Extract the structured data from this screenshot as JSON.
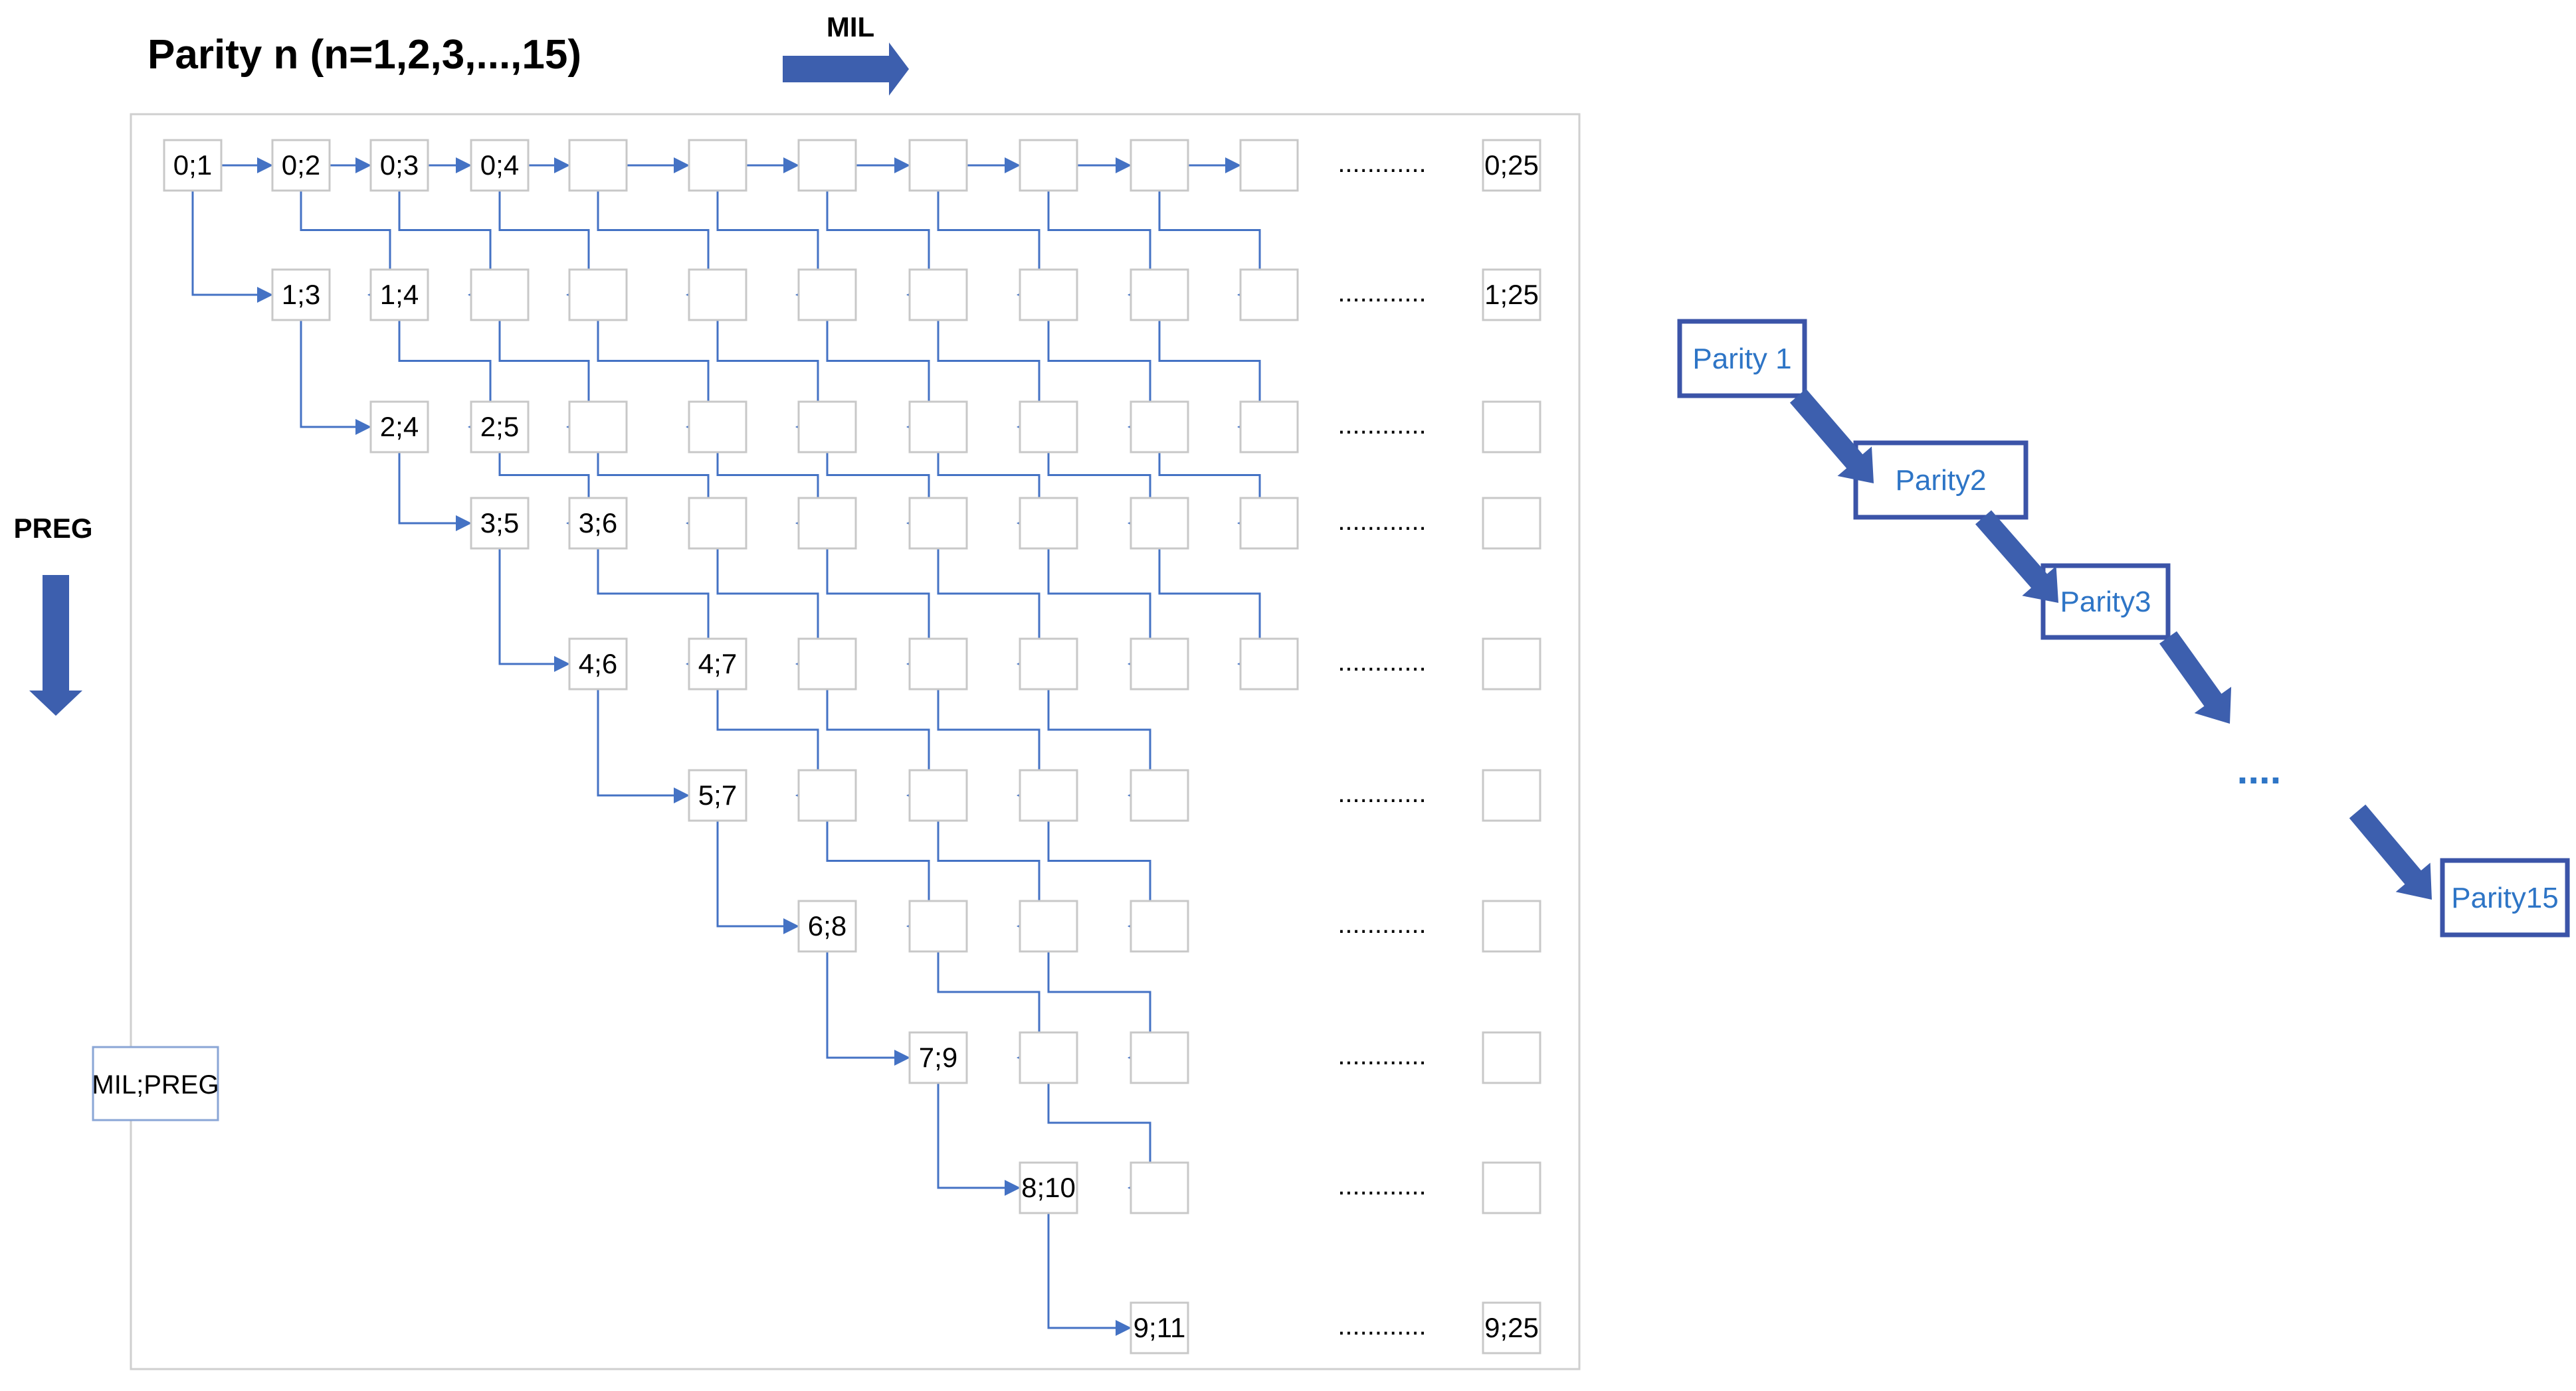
{
  "title": "Parity n  (n=1,2,3,...,15)",
  "mil_label": "MIL",
  "preg_label": "PREG",
  "legend_label": "MIL;PREG",
  "grid": {
    "rows": [
      {
        "labels": [
          "0;1",
          "0;2",
          "0;3",
          "0;4",
          "",
          "",
          "",
          "",
          "",
          "",
          ""
        ],
        "dots": "............",
        "end": "0;25"
      },
      {
        "labels": [
          "1;3",
          "1;4",
          "",
          "",
          "",
          "",
          "",
          "",
          "",
          ""
        ],
        "dots": "............",
        "end": "1;25"
      },
      {
        "labels": [
          "2;4",
          "2;5",
          "",
          "",
          "",
          "",
          "",
          "",
          ""
        ],
        "dots": "............",
        "end": ""
      },
      {
        "labels": [
          "3;5",
          "3;6",
          "",
          "",
          "",
          "",
          "",
          ""
        ],
        "dots": "............",
        "end": ""
      },
      {
        "labels": [
          "4;6",
          "4;7",
          "",
          "",
          "",
          "",
          ""
        ],
        "dots": "............",
        "end": ""
      },
      {
        "labels": [
          "5;7",
          "",
          "",
          "",
          ""
        ],
        "dots": "............",
        "end": ""
      },
      {
        "labels": [
          "6;8",
          "",
          "",
          ""
        ],
        "dots": "............",
        "end": ""
      },
      {
        "labels": [
          "7;9",
          "",
          ""
        ],
        "dots": "............",
        "end": ""
      },
      {
        "labels": [
          "8;10",
          ""
        ],
        "dots": "............",
        "end": ""
      },
      {
        "labels": [
          "9;11"
        ],
        "dots": "............",
        "end": "9;25"
      }
    ]
  },
  "parity_chain": [
    "Parity 1",
    "Parity2",
    "Parity3",
    "Parity15"
  ],
  "parity_ellipsis": "....",
  "colors": {
    "arrow_blue": "#4472c4",
    "fill_blue": "#3d5fae",
    "box_border": "#3b54a8",
    "parity_text": "#2e75c6",
    "cell_border": "#c8c8c8",
    "frame": "#cfcfcf",
    "text": "#000000"
  }
}
